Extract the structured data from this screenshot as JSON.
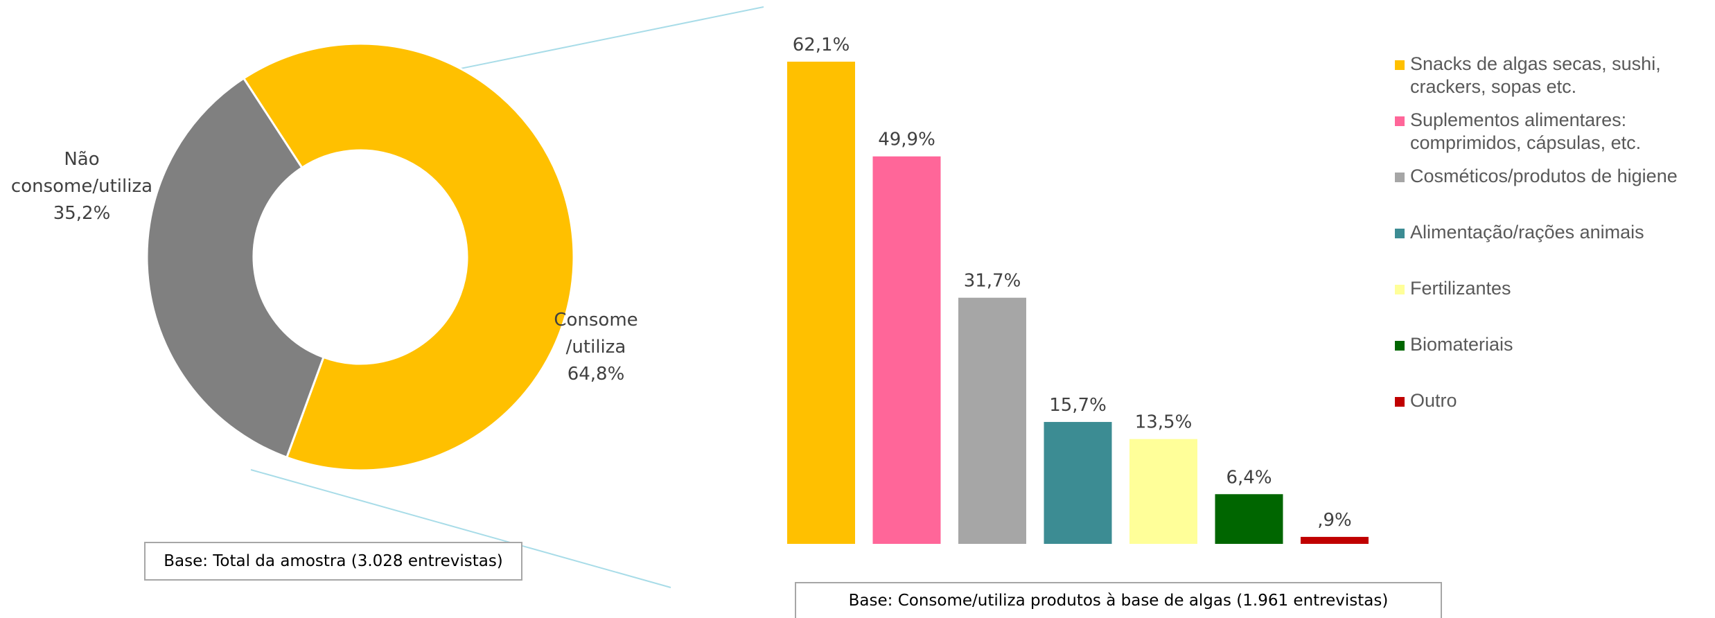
{
  "chart_data": [
    {
      "type": "pie",
      "variant": "donut",
      "slices": [
        {
          "label_lines": [
            "Consome",
            "/utiliza",
            "64,8%"
          ],
          "value": 64.8,
          "color": "#FFC000"
        },
        {
          "label_lines": [
            "Não",
            "consome/utiliza",
            "35,2%"
          ],
          "value": 35.2,
          "color": "#808080"
        }
      ],
      "base_note": "Base: Total da amostra (3.028 entrevistas)"
    },
    {
      "type": "bar",
      "categories": [
        "Snacks de algas secas, sushi, crackers, sopas etc.",
        "Suplementos alimentares: comprimidos, cápsulas, etc.",
        "Cosméticos/produtos de higiene",
        "Alimentação/rações animais",
        "Fertilizantes",
        "Biomateriais",
        "Outro"
      ],
      "legend_lines": [
        [
          "Snacks de algas secas, sushi,",
          "crackers, sopas etc."
        ],
        [
          "Suplementos alimentares:",
          "comprimidos, cápsulas, etc."
        ],
        [
          "Cosméticos/produtos de higiene"
        ],
        [
          "Alimentação/rações animais"
        ],
        [
          "Fertilizantes"
        ],
        [
          "Biomateriais"
        ],
        [
          "Outro"
        ]
      ],
      "values": [
        62.1,
        49.9,
        31.7,
        15.7,
        13.5,
        6.4,
        0.9
      ],
      "data_labels": [
        "62,1%",
        "49,9%",
        "31,7%",
        "15,7%",
        "13,5%",
        "6,4%",
        ",9%"
      ],
      "colors": [
        "#FFC000",
        "#FF6699",
        "#A6A6A6",
        "#3C8C93",
        "#FFFF99",
        "#006600",
        "#C00000"
      ],
      "ylim": [
        0,
        62.1
      ],
      "legend_position": "right",
      "grid": false,
      "base_note": "Base: Consome/utiliza produtos à base de algas  (1.961 entrevistas)"
    }
  ]
}
